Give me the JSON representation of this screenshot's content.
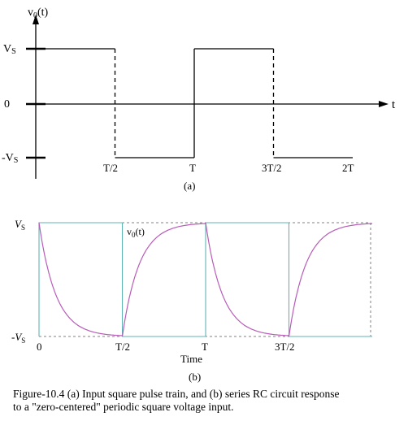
{
  "panel_a": {
    "y_label_main": "v",
    "y_label_sub": "0",
    "y_label_tail": "(t)",
    "x_axis_label": "t",
    "levels": [
      {
        "main": "V",
        "sub": "S"
      },
      {
        "main": "0",
        "sub": ""
      },
      {
        "main": "-V",
        "sub": "S"
      }
    ],
    "time_ticks": [
      "T/2",
      "T",
      "3T/2",
      "2T"
    ],
    "panel_label": "(a)",
    "signal": [
      {
        "t": 0,
        "v": 1
      },
      {
        "t": 0.5,
        "v": 1
      },
      {
        "t": 0.5,
        "v": -1
      },
      {
        "t": 1,
        "v": -1
      },
      {
        "t": 1,
        "v": 1
      },
      {
        "t": 1.5,
        "v": 1
      },
      {
        "t": 1.5,
        "v": -1
      },
      {
        "t": 2,
        "v": -1
      }
    ]
  },
  "panel_b": {
    "levels": [
      {
        "main": "V",
        "sub": "S"
      },
      {
        "main": "-V",
        "sub": "S"
      }
    ],
    "curve_label_main": "v",
    "curve_label_sub": "0",
    "curve_label_tail": "(t)",
    "x_ticks": [
      "0",
      "T/2",
      "T",
      "3T/2"
    ],
    "x_axis_title": "Time",
    "panel_label": "(b)",
    "colors": {
      "square": "#5fb4b4",
      "response": "#b85cb8",
      "frame": "#7f7f7f"
    }
  },
  "caption": {
    "line1": "Figure-10.4 (a) Input square pulse train, and (b) series RC circuit response",
    "line2": "to a \"zero-centered\" periodic square voltage input."
  }
}
